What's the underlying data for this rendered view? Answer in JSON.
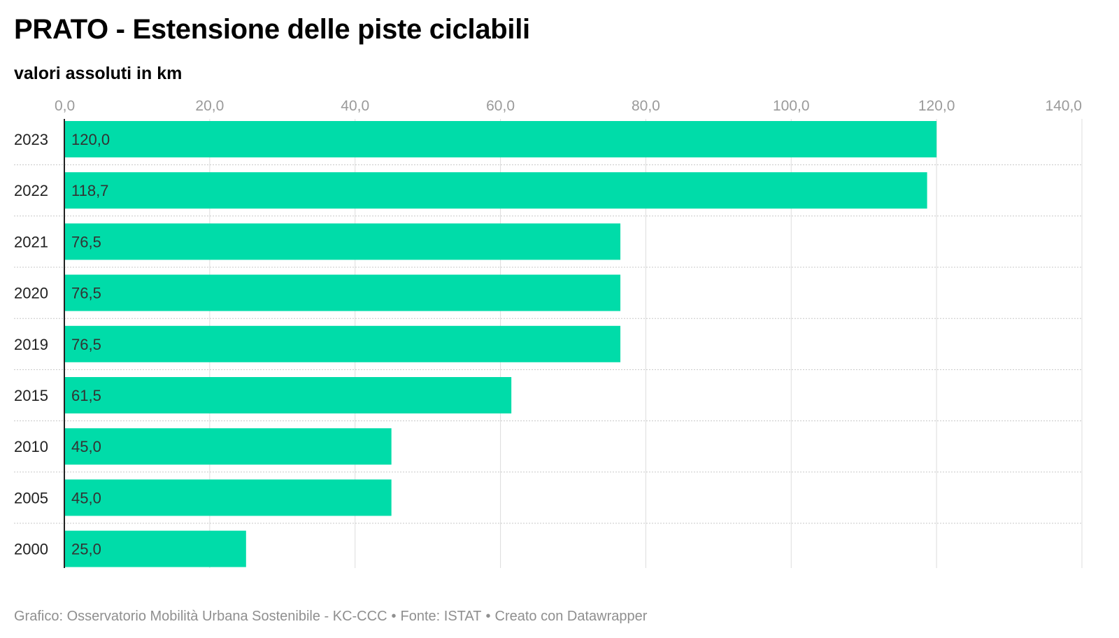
{
  "header": {
    "title": "PRATO - Estensione delle piste ciclabili",
    "subtitle": "valori assoluti in km"
  },
  "footer": {
    "credit": "Grafico: Osservatorio Mobilità Urbana Sostenibile - KC-CCC",
    "source": "Fonte: ISTAT",
    "tool": "Creato con Datawrapper",
    "separator": "•"
  },
  "colors": {
    "bar": "#00dca9",
    "grid": "#dddddd",
    "axis_text": "#9a9a9a",
    "label_text": "#333333",
    "baseline": "#222222"
  },
  "chart_data": {
    "type": "bar",
    "orientation": "horizontal",
    "categories": [
      "2023",
      "2022",
      "2021",
      "2020",
      "2019",
      "2015",
      "2010",
      "2005",
      "2000"
    ],
    "values": [
      120.0,
      118.7,
      76.5,
      76.5,
      76.5,
      61.5,
      45.0,
      45.0,
      25.0
    ],
    "value_labels": [
      "120,0",
      "118,7",
      "76,5",
      "76,5",
      "76,5",
      "61,5",
      "45,0",
      "45,0",
      "25,0"
    ],
    "xlim": [
      0,
      140
    ],
    "ticks": [
      0,
      20,
      40,
      60,
      80,
      100,
      120,
      140
    ],
    "tick_labels": [
      "0,0",
      "20,0",
      "40,0",
      "60,0",
      "80,0",
      "100,0",
      "120,0",
      "140,0"
    ],
    "grid": true,
    "axis_position": "top"
  }
}
